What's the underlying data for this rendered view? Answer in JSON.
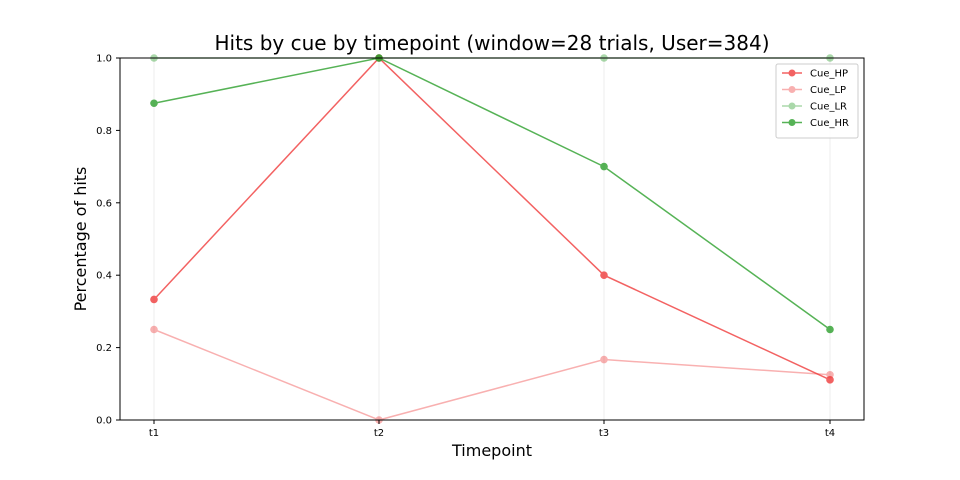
{
  "chart_data": {
    "type": "line",
    "title": "Hits by cue by timepoint (window=28 trials, User=384)",
    "xlabel": "Timepoint",
    "ylabel": "Percentage of hits",
    "categories": [
      "t1",
      "t2",
      "t3",
      "t4"
    ],
    "ylim": [
      0,
      1.0
    ],
    "yticks": [
      "0.0",
      "0.2",
      "0.4",
      "0.6",
      "0.8",
      "1.0"
    ],
    "grid": "vertical",
    "legend_position": "top-right",
    "series": [
      {
        "name": "Cue_HP",
        "values": [
          0.333,
          1.0,
          0.4,
          0.111
        ],
        "color": "#f03b3b",
        "alpha": 0.8
      },
      {
        "name": "Cue_LP",
        "values": [
          0.25,
          0.0,
          0.167,
          0.125
        ],
        "color": "#f03b3b",
        "alpha": 0.4
      },
      {
        "name": "Cue_LR",
        "values": [
          1.0,
          1.0,
          1.0,
          1.0
        ],
        "color": "#2ca02c",
        "alpha": 0.4
      },
      {
        "name": "Cue_HR",
        "values": [
          0.875,
          1.0,
          0.7,
          0.25
        ],
        "color": "#2ca02c",
        "alpha": 0.8
      }
    ]
  }
}
